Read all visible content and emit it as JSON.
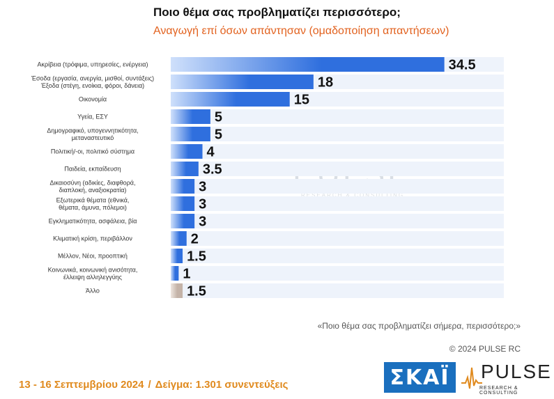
{
  "title": "Ποιο θέμα σας προβληματίζει περισσότερο;",
  "subtitle": "Αναγωγή επί όσων απάντησαν   (ομαδοποίηση απαντήσεων)",
  "watermark": {
    "word": "PULSE",
    "sub": "RESEARCH & CONSULTING"
  },
  "question": "«Ποιο θέμα σας προβληματίζει σήμερα, περισσότερο;»",
  "copyright": "© 2024 PULSE RC",
  "footer": {
    "dates": "13 - 16 Σεπτεμβρίου 2024",
    "separator": "/",
    "sample": "Δείγμα:  1.301 συνεντεύξεις"
  },
  "logos": {
    "skai": "ΣΚΑΪ",
    "pulse": "PULSE",
    "pulse_sub": "RESEARCH & CONSULTING"
  },
  "colors": {
    "bar": "#2f6fde",
    "bar_light": "#cfe0fb",
    "bar_other": "#c4b3a8",
    "row_band": "#eef3fb",
    "accent": "#e2621f"
  },
  "chart_data": {
    "type": "bar",
    "orientation": "horizontal",
    "categories": [
      [
        "Ακρίβεια (τρόφιμα, υπηρεσίες, ενέργεια)"
      ],
      [
        "Έσοδα (εργασία, ανεργία, μισθοί, συντάξεις)",
        "Έξοδα (στέγη, ενοίκια, φόροι, δάνεια)"
      ],
      [
        "Οικονομία"
      ],
      [
        "Υγεία, ΕΣΥ"
      ],
      [
        "Δημογραφικό, υπογεννητικότητα,",
        "μεταναστευτικό"
      ],
      [
        "Πολιτική/-οι, πολιτικό σύστημα"
      ],
      [
        "Παιδεία, εκπαίδευση"
      ],
      [
        "Δικαιοσύνη (αδικίες, διαφθορά,",
        "διαπλοκή, αναξιοκρατία)"
      ],
      [
        "Εξωτερικά θέματα (εθνικά,",
        "θέματα, άμυνα, πόλεμοι)"
      ],
      [
        "Εγκληματικότητα, ασφάλεια, βία"
      ],
      [
        "Κλιματική κρίση, περιβάλλον"
      ],
      [
        "Μέλλον, Νέοι, προοπτική"
      ],
      [
        "Κοινωνικά, κοινωνική ανισότητα,",
        "έλλειψη αλληλεγγύης"
      ],
      [
        "Άλλο"
      ]
    ],
    "values": [
      34.5,
      18,
      15,
      5,
      5,
      4,
      3.5,
      3,
      3,
      3,
      2,
      1.5,
      1,
      1.5
    ],
    "value_labels": [
      "34.5",
      "18",
      "15",
      "5",
      "5",
      "4",
      "3.5",
      "3",
      "3",
      "3",
      "2",
      "1.5",
      "1",
      "1.5"
    ],
    "xlim": [
      0,
      42
    ],
    "grid": false,
    "legend": "none"
  }
}
